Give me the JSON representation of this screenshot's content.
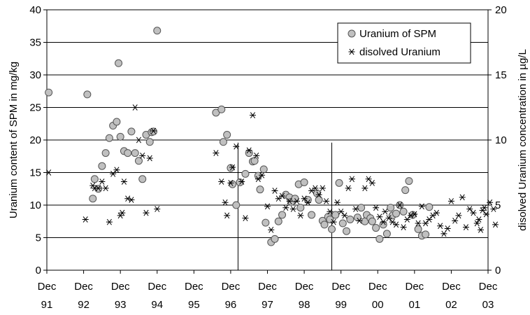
{
  "chart_data": {
    "type": "scatter",
    "ylabel": "Uranium content of SPM in mg/kg",
    "y2label": "disolved Uranium concentration in µg/L",
    "ylim": [
      0,
      40
    ],
    "y2lim": [
      0,
      20
    ],
    "yticks": [
      "0",
      "5",
      "10",
      "15",
      "20",
      "25",
      "30",
      "35",
      "40"
    ],
    "y2ticks": [
      "0",
      "5",
      "10",
      "15",
      "20"
    ],
    "xlim": [
      0,
      12
    ],
    "xticks": [
      {
        "line1": "Dec",
        "line2": "91"
      },
      {
        "line1": "Dec",
        "line2": "92"
      },
      {
        "line1": "Dec",
        "line2": "93"
      },
      {
        "line1": "Dec",
        "line2": "94"
      },
      {
        "line1": "Dec",
        "line2": "95"
      },
      {
        "line1": "Dec",
        "line2": "96"
      },
      {
        "line1": "Dec",
        "line2": "97"
      },
      {
        "line1": "Dec",
        "line2": "98"
      },
      {
        "line1": "Dec",
        "line2": "99"
      },
      {
        "line1": "Dec",
        "line2": "00"
      },
      {
        "line1": "Dec",
        "line2": "01"
      },
      {
        "line1": "Dec",
        "line2": "02"
      },
      {
        "line1": "Dec",
        "line2": "03"
      }
    ],
    "grid": true,
    "legend_position": "top-right",
    "marker_colors": {
      "fill": "#c0c0c0",
      "stroke": "#555555",
      "star": "#000000"
    },
    "vertical_lines_x": [
      5.2,
      7.75
    ],
    "series": [
      {
        "name": "Uranium of SPM",
        "marker": "circle",
        "axis": "left",
        "points": [
          [
            0.05,
            27.3
          ],
          [
            1.1,
            27
          ],
          [
            1.25,
            11
          ],
          [
            1.3,
            14
          ],
          [
            1.4,
            12.5
          ],
          [
            1.5,
            16
          ],
          [
            1.6,
            18
          ],
          [
            1.7,
            20.3
          ],
          [
            1.8,
            22.2
          ],
          [
            1.9,
            22.8
          ],
          [
            1.95,
            31.8
          ],
          [
            2.0,
            20.5
          ],
          [
            2.1,
            18.3
          ],
          [
            2.2,
            18
          ],
          [
            2.3,
            21.3
          ],
          [
            2.4,
            18
          ],
          [
            2.5,
            16.8
          ],
          [
            2.6,
            14
          ],
          [
            2.7,
            20.8
          ],
          [
            2.8,
            19.7
          ],
          [
            2.85,
            21.2
          ],
          [
            2.9,
            21.3
          ],
          [
            3.0,
            36.8
          ],
          [
            4.6,
            24.2
          ],
          [
            4.75,
            24.7
          ],
          [
            4.8,
            19.7
          ],
          [
            4.9,
            20.8
          ],
          [
            5.0,
            15.7
          ],
          [
            5.05,
            13.2
          ],
          [
            5.15,
            10
          ],
          [
            5.25,
            13.5
          ],
          [
            5.4,
            14.8
          ],
          [
            5.5,
            18
          ],
          [
            5.6,
            16.7
          ],
          [
            5.65,
            16.8
          ],
          [
            5.75,
            14.5
          ],
          [
            5.8,
            12.4
          ],
          [
            5.9,
            15.5
          ],
          [
            5.95,
            7.3
          ],
          [
            6.1,
            4.3
          ],
          [
            6.2,
            4.8
          ],
          [
            6.3,
            7.5
          ],
          [
            6.4,
            8.5
          ],
          [
            6.5,
            11.6
          ],
          [
            6.6,
            11.2
          ],
          [
            6.65,
            10.5
          ],
          [
            6.75,
            11
          ],
          [
            6.85,
            13.2
          ],
          [
            6.9,
            9.6
          ],
          [
            7.0,
            13.5
          ],
          [
            7.1,
            10.8
          ],
          [
            7.2,
            8.5
          ],
          [
            7.35,
            11.8
          ],
          [
            7.4,
            10.8
          ],
          [
            7.5,
            7.6
          ],
          [
            7.55,
            7
          ],
          [
            7.65,
            8.2
          ],
          [
            7.7,
            7.8
          ],
          [
            7.75,
            6.3
          ],
          [
            7.85,
            8.5
          ],
          [
            7.95,
            13.4
          ],
          [
            8.05,
            7.2
          ],
          [
            8.15,
            6
          ],
          [
            8.25,
            7.8
          ],
          [
            8.45,
            8.1
          ],
          [
            8.55,
            9.6
          ],
          [
            8.65,
            7.5
          ],
          [
            8.7,
            8.5
          ],
          [
            8.8,
            8
          ],
          [
            8.85,
            7.5
          ],
          [
            8.95,
            6.5
          ],
          [
            9.05,
            4.8
          ],
          [
            9.15,
            7
          ],
          [
            9.25,
            5.6
          ],
          [
            9.35,
            9.6
          ],
          [
            9.4,
            8.4
          ],
          [
            9.5,
            8.7
          ],
          [
            9.6,
            10
          ],
          [
            9.7,
            9
          ],
          [
            9.75,
            12.3
          ],
          [
            9.85,
            13.7
          ],
          [
            9.95,
            8.5
          ],
          [
            10.1,
            6.3
          ],
          [
            10.2,
            5.3
          ],
          [
            10.3,
            5.5
          ],
          [
            10.4,
            9.7
          ]
        ]
      },
      {
        "name": "disolved Uranium",
        "marker": "star",
        "axis": "right",
        "points": [
          [
            0.05,
            7.5
          ],
          [
            1.05,
            3.9
          ],
          [
            1.25,
            6.5
          ],
          [
            1.3,
            6.3
          ],
          [
            1.4,
            6.3
          ],
          [
            1.5,
            6.8
          ],
          [
            1.6,
            6.3
          ],
          [
            1.7,
            3.7
          ],
          [
            1.8,
            7.4
          ],
          [
            1.9,
            7.7
          ],
          [
            2.0,
            4.2
          ],
          [
            2.05,
            4.4
          ],
          [
            2.1,
            6.8
          ],
          [
            2.2,
            5.5
          ],
          [
            2.3,
            5.4
          ],
          [
            2.4,
            12.5
          ],
          [
            2.5,
            10
          ],
          [
            2.6,
            8.8
          ],
          [
            2.7,
            4.4
          ],
          [
            2.8,
            8.6
          ],
          [
            2.9,
            10.7
          ],
          [
            3.0,
            4.7
          ],
          [
            4.6,
            9
          ],
          [
            4.75,
            6.8
          ],
          [
            4.85,
            5.2
          ],
          [
            4.9,
            4.2
          ],
          [
            5.0,
            6.7
          ],
          [
            5.05,
            7.9
          ],
          [
            5.15,
            9.5
          ],
          [
            5.3,
            6.8
          ],
          [
            5.4,
            4
          ],
          [
            5.5,
            9.2
          ],
          [
            5.6,
            11.9
          ],
          [
            5.7,
            8.8
          ],
          [
            5.75,
            7
          ],
          [
            5.85,
            7.3
          ],
          [
            6.0,
            4.9
          ],
          [
            6.1,
            3.1
          ],
          [
            6.2,
            6.1
          ],
          [
            6.3,
            5.5
          ],
          [
            6.4,
            5.7
          ],
          [
            6.5,
            4.8
          ],
          [
            6.6,
            5.3
          ],
          [
            6.7,
            4.7
          ],
          [
            6.8,
            5.3
          ],
          [
            6.9,
            4.2
          ],
          [
            7.0,
            5.5
          ],
          [
            7.1,
            5.2
          ],
          [
            7.2,
            6.1
          ],
          [
            7.3,
            6.3
          ],
          [
            7.4,
            5.8
          ],
          [
            7.5,
            6.3
          ],
          [
            7.6,
            5.3
          ],
          [
            7.7,
            4.5
          ],
          [
            7.8,
            3.7
          ],
          [
            7.9,
            5.2
          ],
          [
            8.0,
            4.5
          ],
          [
            8.1,
            4.2
          ],
          [
            8.2,
            6.3
          ],
          [
            8.3,
            7
          ],
          [
            8.4,
            4.7
          ],
          [
            8.5,
            3.8
          ],
          [
            8.65,
            6.3
          ],
          [
            8.75,
            7
          ],
          [
            8.85,
            6.7
          ],
          [
            8.95,
            4.8
          ],
          [
            9.05,
            4.1
          ],
          [
            9.15,
            3.7
          ],
          [
            9.2,
            4.5
          ],
          [
            9.3,
            4
          ],
          [
            9.4,
            3.7
          ],
          [
            9.5,
            3.5
          ],
          [
            9.6,
            5
          ],
          [
            9.7,
            3.3
          ],
          [
            9.8,
            3.9
          ],
          [
            9.9,
            4.2
          ],
          [
            10.0,
            4.3
          ],
          [
            10.1,
            3.6
          ],
          [
            10.2,
            4.9
          ],
          [
            10.3,
            3.6
          ],
          [
            10.4,
            3.9
          ],
          [
            10.5,
            4.2
          ],
          [
            10.6,
            4.4
          ],
          [
            10.7,
            3.4
          ],
          [
            10.8,
            2.8
          ],
          [
            10.9,
            3.2
          ],
          [
            11.0,
            5.3
          ],
          [
            11.1,
            3.8
          ],
          [
            11.2,
            4.2
          ],
          [
            11.3,
            5.6
          ],
          [
            11.4,
            3.3
          ],
          [
            11.5,
            4.7
          ],
          [
            11.6,
            4.4
          ],
          [
            11.7,
            3.6
          ],
          [
            11.75,
            3.9
          ],
          [
            11.8,
            3.1
          ],
          [
            11.85,
            4.6
          ],
          [
            11.9,
            4.8
          ],
          [
            11.95,
            4.3
          ],
          [
            12.05,
            5.2
          ],
          [
            12.15,
            4.7
          ],
          [
            12.2,
            3.5
          ]
        ]
      }
    ]
  }
}
